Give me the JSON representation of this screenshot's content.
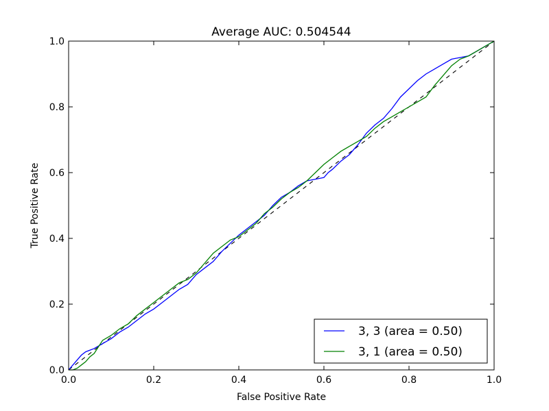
{
  "chart_data": {
    "type": "line",
    "title": "Average AUC: 0.504544",
    "xlabel": "False Positive Rate",
    "ylabel": "True Positive Rate",
    "xlim": [
      0.0,
      1.0
    ],
    "ylim": [
      0.0,
      1.0
    ],
    "xticks": [
      "0.0",
      "0.2",
      "0.4",
      "0.6",
      "0.8",
      "1.0"
    ],
    "yticks": [
      "0.0",
      "0.2",
      "0.4",
      "0.6",
      "0.8",
      "1.0"
    ],
    "grid": false,
    "legend_position": "lower-right",
    "reference_line": {
      "x": [
        0.0,
        1.0
      ],
      "y": [
        0.0,
        1.0
      ],
      "style": "dashed",
      "color": "#000000"
    },
    "series": [
      {
        "name": "3, 3 (area = 0.50)",
        "color": "#0000ff",
        "x": [
          0.0,
          0.01,
          0.02,
          0.03,
          0.04,
          0.06,
          0.08,
          0.1,
          0.12,
          0.14,
          0.16,
          0.18,
          0.2,
          0.22,
          0.24,
          0.26,
          0.28,
          0.3,
          0.32,
          0.34,
          0.36,
          0.38,
          0.4,
          0.42,
          0.44,
          0.46,
          0.48,
          0.5,
          0.52,
          0.54,
          0.56,
          0.58,
          0.6,
          0.61,
          0.62,
          0.64,
          0.66,
          0.68,
          0.7,
          0.72,
          0.74,
          0.76,
          0.78,
          0.8,
          0.82,
          0.84,
          0.86,
          0.88,
          0.9,
          0.92,
          0.94,
          0.96,
          0.98,
          1.0
        ],
        "y": [
          0.0,
          0.015,
          0.03,
          0.045,
          0.055,
          0.065,
          0.08,
          0.095,
          0.115,
          0.13,
          0.15,
          0.17,
          0.185,
          0.205,
          0.225,
          0.245,
          0.26,
          0.29,
          0.31,
          0.33,
          0.36,
          0.385,
          0.41,
          0.43,
          0.45,
          0.47,
          0.5,
          0.525,
          0.54,
          0.56,
          0.575,
          0.58,
          0.585,
          0.6,
          0.61,
          0.635,
          0.655,
          0.685,
          0.72,
          0.745,
          0.765,
          0.795,
          0.83,
          0.855,
          0.88,
          0.9,
          0.915,
          0.93,
          0.945,
          0.95,
          0.955,
          0.97,
          0.985,
          1.0
        ]
      },
      {
        "name": "3, 1 (area = 0.50)",
        "color": "#008000",
        "x": [
          0.0,
          0.01,
          0.02,
          0.03,
          0.04,
          0.05,
          0.06,
          0.07,
          0.08,
          0.1,
          0.12,
          0.14,
          0.16,
          0.18,
          0.2,
          0.22,
          0.24,
          0.26,
          0.28,
          0.3,
          0.32,
          0.34,
          0.36,
          0.38,
          0.4,
          0.42,
          0.44,
          0.46,
          0.48,
          0.5,
          0.52,
          0.54,
          0.56,
          0.58,
          0.6,
          0.62,
          0.64,
          0.66,
          0.68,
          0.7,
          0.72,
          0.74,
          0.76,
          0.78,
          0.8,
          0.82,
          0.84,
          0.86,
          0.88,
          0.9,
          0.92,
          0.94,
          0.96,
          0.98,
          1.0
        ],
        "y": [
          0.0,
          0.0,
          0.005,
          0.015,
          0.025,
          0.04,
          0.05,
          0.07,
          0.09,
          0.105,
          0.125,
          0.14,
          0.165,
          0.185,
          0.205,
          0.225,
          0.245,
          0.265,
          0.275,
          0.295,
          0.325,
          0.355,
          0.375,
          0.395,
          0.405,
          0.425,
          0.445,
          0.475,
          0.495,
          0.52,
          0.54,
          0.555,
          0.575,
          0.6,
          0.625,
          0.645,
          0.665,
          0.68,
          0.695,
          0.71,
          0.735,
          0.755,
          0.77,
          0.785,
          0.8,
          0.815,
          0.83,
          0.865,
          0.895,
          0.925,
          0.945,
          0.955,
          0.97,
          0.985,
          1.0
        ]
      }
    ]
  }
}
